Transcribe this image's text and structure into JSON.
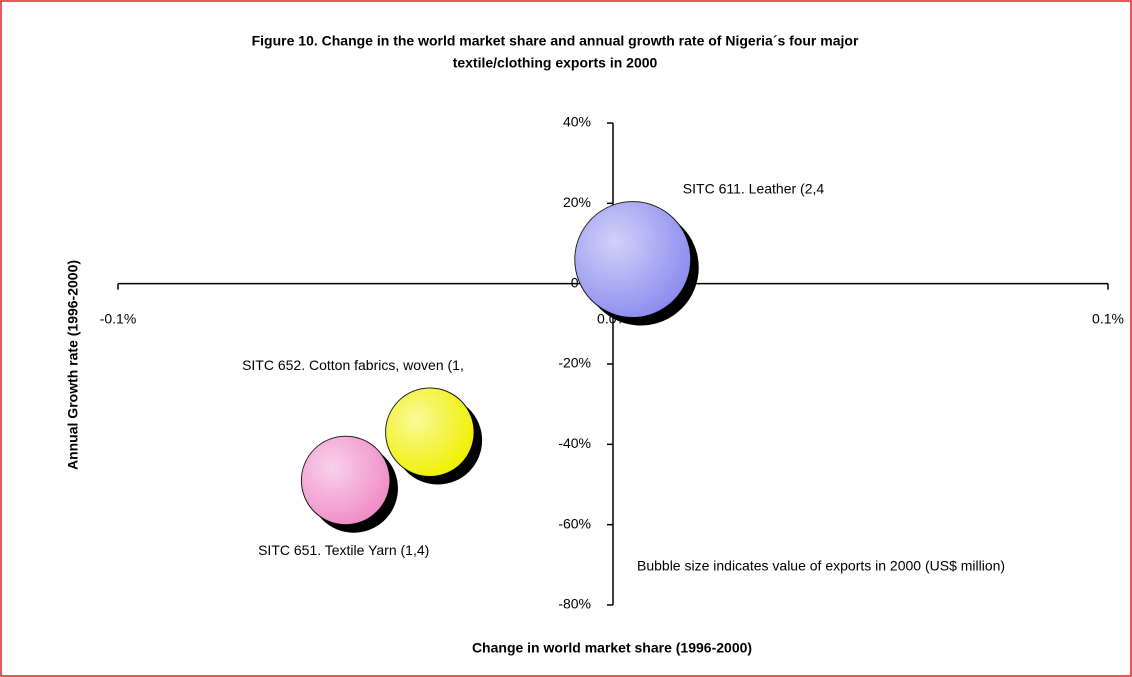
{
  "chart_data": {
    "type": "bubble",
    "title": [
      "Figure 10. Change in the world market share and annual growth rate of Nigeria´s four major",
      "textile/clothing exports in 2000"
    ],
    "x_label": "Change in world market share (1996-2000)",
    "y_label": "Annual Growth rate (1996-2000)",
    "annotation": "Bubble size indicates value of exports in 2000 (US$ million)",
    "series": [
      {
        "name": "SITC 611. Leather (2,4",
        "color": "#8c8cf0",
        "x": [
          0.004
        ],
        "values": [
          6
        ],
        "sizes": [
          2.4
        ]
      },
      {
        "name": "SITC 652. Cotton fabrics, woven (1,",
        "color": "#f0f000",
        "x": [
          -0.037
        ],
        "values": [
          -37
        ],
        "sizes": [
          1.4
        ]
      },
      {
        "name": "SITC 651. Textile Yarn (1,4)",
        "color": "#f08cc8",
        "x": [
          -0.054
        ],
        "values": [
          -49
        ],
        "sizes": [
          1.4
        ]
      }
    ],
    "xlim": [
      -0.1,
      0.1
    ],
    "xticks": [
      {
        "value": -0.1,
        "label": "-0.1%"
      },
      {
        "value": 0,
        "label": "0.0%"
      },
      {
        "value": 0.1,
        "label": "0.1%"
      }
    ],
    "ylim": [
      -80,
      40
    ],
    "yticks": [
      {
        "value": 40,
        "label": "40%"
      },
      {
        "value": 20,
        "label": "20%"
      },
      {
        "value": 0,
        "label": "0%"
      },
      {
        "value": -20,
        "label": "-20%"
      },
      {
        "value": -40,
        "label": "-40%"
      },
      {
        "value": -60,
        "label": "-60%"
      },
      {
        "value": -80,
        "label": "-80%"
      }
    ]
  }
}
